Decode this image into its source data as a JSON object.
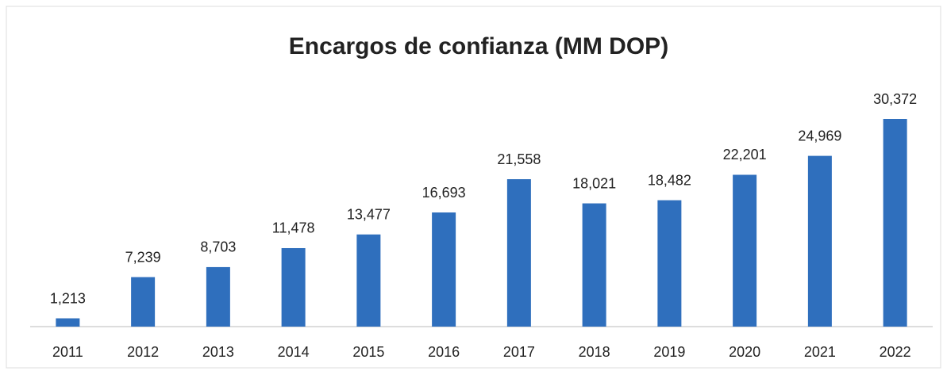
{
  "chart_data": {
    "type": "bar",
    "title": "Encargos de confianza (MM DOP)",
    "categories": [
      "2011",
      "2012",
      "2013",
      "2014",
      "2015",
      "2016",
      "2017",
      "2018",
      "2019",
      "2020",
      "2021",
      "2022"
    ],
    "values": [
      1213,
      7239,
      8703,
      11478,
      13477,
      16693,
      21558,
      18021,
      18482,
      22201,
      24969,
      30372
    ],
    "value_labels": [
      "1,213",
      "7,239",
      "8,703",
      "11,478",
      "13,477",
      "16,693",
      "21,558",
      "18,021",
      "18,482",
      "22,201",
      "24,969",
      "30,372"
    ],
    "color": "#2f6fbd"
  }
}
